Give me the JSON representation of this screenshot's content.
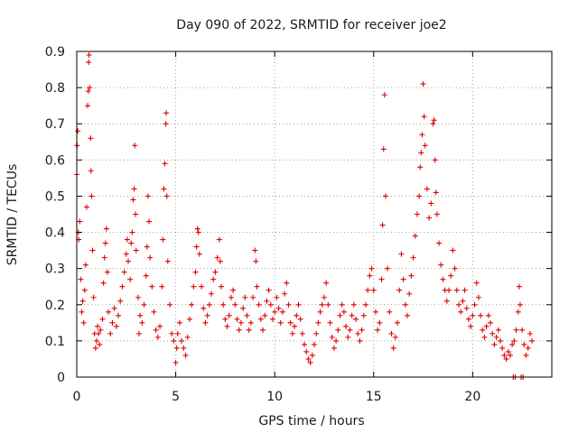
{
  "chart_data": {
    "type": "scatter",
    "title": "Day 090 of 2022, SRMTID for receiver joe2",
    "xlabel": "GPS time / hours",
    "ylabel": "SRMTID / TECUs",
    "xlim": [
      0,
      24
    ],
    "ylim": [
      0,
      0.9
    ],
    "xticks": [
      0,
      5,
      10,
      15,
      20
    ],
    "yticks": [
      0,
      0.1,
      0.2,
      0.3,
      0.4,
      0.5,
      0.6,
      0.7,
      0.8,
      0.9
    ],
    "xtick_labels": [
      "0",
      "5",
      "10",
      "15",
      "20"
    ],
    "ytick_labels": [
      "0",
      "0.1",
      "0.2",
      "0.3",
      "0.4",
      "0.5",
      "0.6",
      "0.7",
      "0.8",
      "0.9"
    ],
    "grid": true,
    "marker": "plus",
    "color": "#e00000",
    "series": [
      {
        "name": "SRMTID",
        "points": [
          [
            0.0,
            0.56
          ],
          [
            0.02,
            0.64
          ],
          [
            0.05,
            0.68
          ],
          [
            0.08,
            0.4
          ],
          [
            0.1,
            0.38
          ],
          [
            0.15,
            0.43
          ],
          [
            0.2,
            0.27
          ],
          [
            0.25,
            0.18
          ],
          [
            0.3,
            0.21
          ],
          [
            0.35,
            0.15
          ],
          [
            0.4,
            0.24
          ],
          [
            0.45,
            0.31
          ],
          [
            0.5,
            0.47
          ],
          [
            0.55,
            0.75
          ],
          [
            0.58,
            0.79
          ],
          [
            0.6,
            0.87
          ],
          [
            0.62,
            0.89
          ],
          [
            0.65,
            0.8
          ],
          [
            0.7,
            0.66
          ],
          [
            0.72,
            0.57
          ],
          [
            0.75,
            0.5
          ],
          [
            0.8,
            0.35
          ],
          [
            0.85,
            0.22
          ],
          [
            0.9,
            0.12
          ],
          [
            0.95,
            0.08
          ],
          [
            1.0,
            0.1
          ],
          [
            1.05,
            0.14
          ],
          [
            1.1,
            0.12
          ],
          [
            1.15,
            0.09
          ],
          [
            1.2,
            0.13
          ],
          [
            1.3,
            0.16
          ],
          [
            1.35,
            0.26
          ],
          [
            1.4,
            0.33
          ],
          [
            1.45,
            0.37
          ],
          [
            1.5,
            0.41
          ],
          [
            1.55,
            0.29
          ],
          [
            1.6,
            0.18
          ],
          [
            1.7,
            0.12
          ],
          [
            1.8,
            0.15
          ],
          [
            1.9,
            0.19
          ],
          [
            2.0,
            0.14
          ],
          [
            2.1,
            0.17
          ],
          [
            2.2,
            0.21
          ],
          [
            2.3,
            0.25
          ],
          [
            2.4,
            0.29
          ],
          [
            2.5,
            0.34
          ],
          [
            2.55,
            0.38
          ],
          [
            2.6,
            0.32
          ],
          [
            2.7,
            0.27
          ],
          [
            2.75,
            0.37
          ],
          [
            2.8,
            0.4
          ],
          [
            2.85,
            0.49
          ],
          [
            2.9,
            0.52
          ],
          [
            2.93,
            0.64
          ],
          [
            2.97,
            0.45
          ],
          [
            3.0,
            0.35
          ],
          [
            3.1,
            0.22
          ],
          [
            3.15,
            0.12
          ],
          [
            3.2,
            0.17
          ],
          [
            3.3,
            0.15
          ],
          [
            3.4,
            0.2
          ],
          [
            3.5,
            0.28
          ],
          [
            3.55,
            0.36
          ],
          [
            3.6,
            0.5
          ],
          [
            3.65,
            0.43
          ],
          [
            3.7,
            0.33
          ],
          [
            3.8,
            0.25
          ],
          [
            3.9,
            0.18
          ],
          [
            4.0,
            0.13
          ],
          [
            4.1,
            0.11
          ],
          [
            4.2,
            0.14
          ],
          [
            4.3,
            0.25
          ],
          [
            4.35,
            0.38
          ],
          [
            4.4,
            0.52
          ],
          [
            4.45,
            0.59
          ],
          [
            4.5,
            0.7
          ],
          [
            4.52,
            0.73
          ],
          [
            4.55,
            0.5
          ],
          [
            4.6,
            0.32
          ],
          [
            4.7,
            0.2
          ],
          [
            4.8,
            0.12
          ],
          [
            4.9,
            0.1
          ],
          [
            5.0,
            0.04
          ],
          [
            5.05,
            0.08
          ],
          [
            5.1,
            0.12
          ],
          [
            5.2,
            0.15
          ],
          [
            5.3,
            0.1
          ],
          [
            5.4,
            0.08
          ],
          [
            5.5,
            0.06
          ],
          [
            5.6,
            0.11
          ],
          [
            5.7,
            0.16
          ],
          [
            5.8,
            0.2
          ],
          [
            5.9,
            0.25
          ],
          [
            6.0,
            0.29
          ],
          [
            6.05,
            0.36
          ],
          [
            6.1,
            0.41
          ],
          [
            6.15,
            0.4
          ],
          [
            6.2,
            0.34
          ],
          [
            6.3,
            0.25
          ],
          [
            6.4,
            0.19
          ],
          [
            6.5,
            0.15
          ],
          [
            6.6,
            0.17
          ],
          [
            6.7,
            0.2
          ],
          [
            6.8,
            0.23
          ],
          [
            6.9,
            0.27
          ],
          [
            7.0,
            0.29
          ],
          [
            7.1,
            0.33
          ],
          [
            7.2,
            0.38
          ],
          [
            7.25,
            0.32
          ],
          [
            7.3,
            0.25
          ],
          [
            7.4,
            0.2
          ],
          [
            7.5,
            0.16
          ],
          [
            7.6,
            0.14
          ],
          [
            7.7,
            0.17
          ],
          [
            7.8,
            0.22
          ],
          [
            7.9,
            0.24
          ],
          [
            8.0,
            0.2
          ],
          [
            8.1,
            0.16
          ],
          [
            8.2,
            0.13
          ],
          [
            8.3,
            0.15
          ],
          [
            8.4,
            0.19
          ],
          [
            8.5,
            0.22
          ],
          [
            8.6,
            0.17
          ],
          [
            8.7,
            0.13
          ],
          [
            8.8,
            0.15
          ],
          [
            8.9,
            0.22
          ],
          [
            9.0,
            0.35
          ],
          [
            9.05,
            0.32
          ],
          [
            9.1,
            0.25
          ],
          [
            9.2,
            0.2
          ],
          [
            9.3,
            0.16
          ],
          [
            9.4,
            0.13
          ],
          [
            9.5,
            0.17
          ],
          [
            9.6,
            0.21
          ],
          [
            9.7,
            0.24
          ],
          [
            9.8,
            0.2
          ],
          [
            9.9,
            0.16
          ],
          [
            10.0,
            0.18
          ],
          [
            10.1,
            0.22
          ],
          [
            10.2,
            0.19
          ],
          [
            10.3,
            0.15
          ],
          [
            10.4,
            0.18
          ],
          [
            10.5,
            0.23
          ],
          [
            10.6,
            0.26
          ],
          [
            10.7,
            0.2
          ],
          [
            10.8,
            0.15
          ],
          [
            10.9,
            0.12
          ],
          [
            11.0,
            0.14
          ],
          [
            11.1,
            0.17
          ],
          [
            11.2,
            0.2
          ],
          [
            11.3,
            0.16
          ],
          [
            11.4,
            0.12
          ],
          [
            11.5,
            0.09
          ],
          [
            11.6,
            0.07
          ],
          [
            11.7,
            0.05
          ],
          [
            11.8,
            0.04
          ],
          [
            11.9,
            0.06
          ],
          [
            12.0,
            0.09
          ],
          [
            12.1,
            0.12
          ],
          [
            12.2,
            0.15
          ],
          [
            12.3,
            0.18
          ],
          [
            12.4,
            0.2
          ],
          [
            12.5,
            0.22
          ],
          [
            12.6,
            0.26
          ],
          [
            12.7,
            0.2
          ],
          [
            12.8,
            0.15
          ],
          [
            12.9,
            0.11
          ],
          [
            13.0,
            0.08
          ],
          [
            13.1,
            0.1
          ],
          [
            13.2,
            0.13
          ],
          [
            13.3,
            0.17
          ],
          [
            13.4,
            0.2
          ],
          [
            13.5,
            0.18
          ],
          [
            13.6,
            0.14
          ],
          [
            13.7,
            0.11
          ],
          [
            13.8,
            0.13
          ],
          [
            13.9,
            0.17
          ],
          [
            14.0,
            0.2
          ],
          [
            14.1,
            0.16
          ],
          [
            14.2,
            0.12
          ],
          [
            14.3,
            0.1
          ],
          [
            14.4,
            0.13
          ],
          [
            14.5,
            0.17
          ],
          [
            14.6,
            0.2
          ],
          [
            14.7,
            0.24
          ],
          [
            14.8,
            0.28
          ],
          [
            14.9,
            0.3
          ],
          [
            15.0,
            0.24
          ],
          [
            15.1,
            0.18
          ],
          [
            15.2,
            0.13
          ],
          [
            15.3,
            0.15
          ],
          [
            15.4,
            0.27
          ],
          [
            15.45,
            0.42
          ],
          [
            15.5,
            0.63
          ],
          [
            15.55,
            0.78
          ],
          [
            15.6,
            0.5
          ],
          [
            15.7,
            0.3
          ],
          [
            15.8,
            0.18
          ],
          [
            15.9,
            0.12
          ],
          [
            16.0,
            0.08
          ],
          [
            16.1,
            0.11
          ],
          [
            16.2,
            0.15
          ],
          [
            16.3,
            0.24
          ],
          [
            16.4,
            0.34
          ],
          [
            16.5,
            0.27
          ],
          [
            16.6,
            0.2
          ],
          [
            16.7,
            0.17
          ],
          [
            16.8,
            0.23
          ],
          [
            16.9,
            0.28
          ],
          [
            17.0,
            0.33
          ],
          [
            17.1,
            0.39
          ],
          [
            17.2,
            0.45
          ],
          [
            17.3,
            0.5
          ],
          [
            17.35,
            0.58
          ],
          [
            17.4,
            0.62
          ],
          [
            17.45,
            0.67
          ],
          [
            17.5,
            0.81
          ],
          [
            17.55,
            0.72
          ],
          [
            17.6,
            0.64
          ],
          [
            17.7,
            0.52
          ],
          [
            17.8,
            0.44
          ],
          [
            17.9,
            0.48
          ],
          [
            18.0,
            0.7
          ],
          [
            18.05,
            0.71
          ],
          [
            18.1,
            0.6
          ],
          [
            18.15,
            0.51
          ],
          [
            18.2,
            0.45
          ],
          [
            18.3,
            0.37
          ],
          [
            18.4,
            0.31
          ],
          [
            18.5,
            0.27
          ],
          [
            18.6,
            0.24
          ],
          [
            18.7,
            0.21
          ],
          [
            18.8,
            0.24
          ],
          [
            18.9,
            0.28
          ],
          [
            19.0,
            0.35
          ],
          [
            19.1,
            0.3
          ],
          [
            19.2,
            0.24
          ],
          [
            19.3,
            0.2
          ],
          [
            19.4,
            0.18
          ],
          [
            19.5,
            0.21
          ],
          [
            19.6,
            0.24
          ],
          [
            19.7,
            0.19
          ],
          [
            19.8,
            0.16
          ],
          [
            19.9,
            0.14
          ],
          [
            20.0,
            0.17
          ],
          [
            20.1,
            0.2
          ],
          [
            20.2,
            0.26
          ],
          [
            20.3,
            0.22
          ],
          [
            20.4,
            0.17
          ],
          [
            20.5,
            0.13
          ],
          [
            20.6,
            0.11
          ],
          [
            20.7,
            0.14
          ],
          [
            20.8,
            0.17
          ],
          [
            20.9,
            0.15
          ],
          [
            21.0,
            0.12
          ],
          [
            21.1,
            0.09
          ],
          [
            21.2,
            0.11
          ],
          [
            21.3,
            0.13
          ],
          [
            21.4,
            0.1
          ],
          [
            21.5,
            0.08
          ],
          [
            21.6,
            0.06
          ],
          [
            21.7,
            0.05
          ],
          [
            21.8,
            0.07
          ],
          [
            21.9,
            0.06
          ],
          [
            22.0,
            0.09
          ],
          [
            22.1,
            0.1
          ],
          [
            22.2,
            0.13
          ],
          [
            22.3,
            0.18
          ],
          [
            22.35,
            0.25
          ],
          [
            22.4,
            0.2
          ],
          [
            22.5,
            0.13
          ],
          [
            22.6,
            0.09
          ],
          [
            22.7,
            0.06
          ],
          [
            22.8,
            0.08
          ],
          [
            22.9,
            0.12
          ],
          [
            23.0,
            0.1
          ],
          [
            22.05,
            0.0
          ],
          [
            22.15,
            0.0
          ],
          [
            22.45,
            0.0
          ],
          [
            22.55,
            0.0
          ]
        ]
      }
    ]
  }
}
